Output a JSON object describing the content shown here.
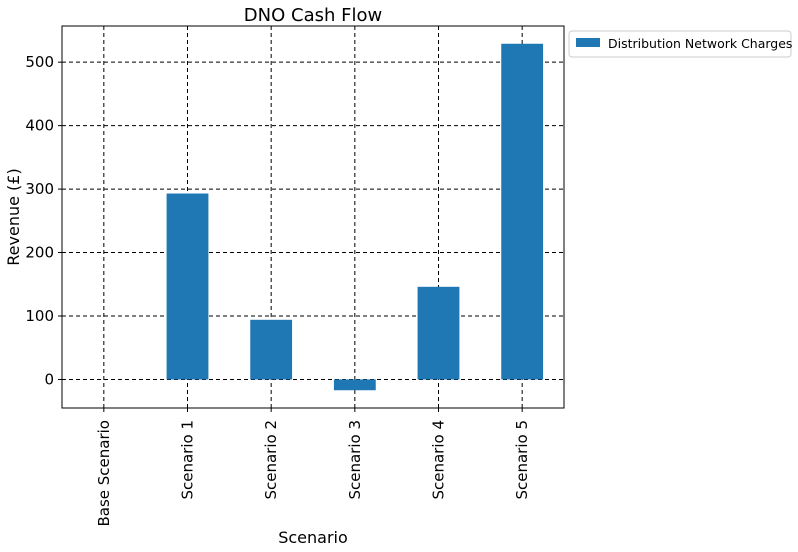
{
  "chart_data": {
    "type": "bar",
    "title": "DNO Cash Flow",
    "xlabel": "Scenario",
    "ylabel": "Revenue (£)",
    "categories": [
      "Base Scenario",
      "Scenario 1",
      "Scenario 2",
      "Scenario 3",
      "Scenario 4",
      "Scenario 5"
    ],
    "series": [
      {
        "name": "Distribution Network Charges",
        "values": [
          0,
          293,
          94,
          -17,
          146,
          529
        ],
        "color": "#1f77b4"
      }
    ],
    "ylim": [
      -45,
      557
    ],
    "yticks": [
      0,
      100,
      200,
      300,
      400,
      500
    ],
    "grid": true,
    "grid_style": "dashed",
    "legend_position": "outside-top-right"
  }
}
